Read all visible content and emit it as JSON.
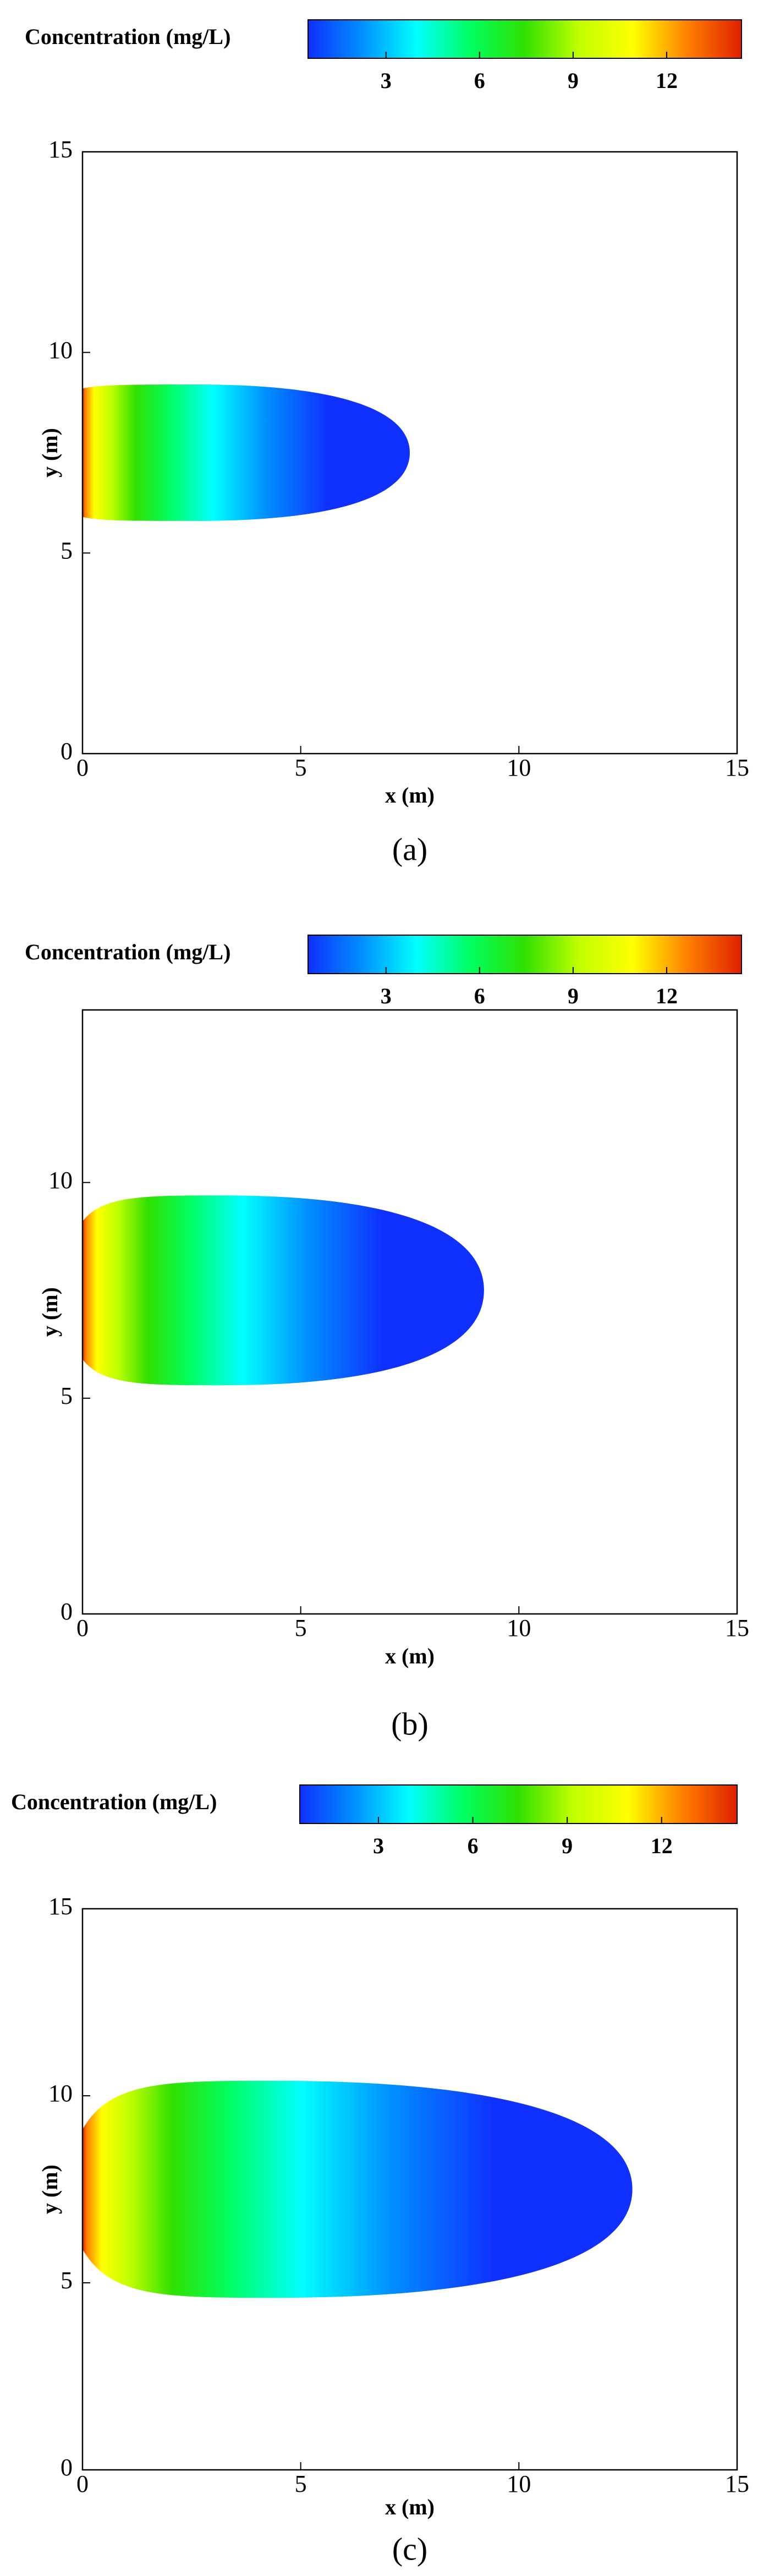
{
  "chart_data": [
    {
      "type": "contour",
      "colorbar_label": "Concentration (mg/L)",
      "clim": [
        0.5,
        14.4
      ],
      "cticks": [
        3,
        6,
        9,
        12
      ],
      "colormap": [
        "#1030ff",
        "#0090ff",
        "#00ffff",
        "#00ff60",
        "#30e000",
        "#c0ff00",
        "#ffff00",
        "#ff8000",
        "#e02000"
      ],
      "xlim": [
        0,
        15
      ],
      "ylim": [
        0,
        15
      ],
      "xticks": [
        0,
        5,
        10,
        15
      ],
      "yticks": [
        0,
        5,
        10,
        15
      ],
      "xlabel": "x (m)",
      "ylabel": "y (m)",
      "caption": "(a)",
      "plume": {
        "x_max": 7.5,
        "y_min": 5.8,
        "y_max": 9.2
      }
    },
    {
      "type": "contour",
      "colorbar_label": "Concentration (mg/L)",
      "clim": [
        0.5,
        14.4
      ],
      "cticks": [
        3,
        6,
        9,
        12
      ],
      "colormap": [
        "#1030ff",
        "#0090ff",
        "#00ffff",
        "#00ff60",
        "#30e000",
        "#c0ff00",
        "#ffff00",
        "#ff8000",
        "#e02000"
      ],
      "xlim": [
        0,
        15
      ],
      "ylim": [
        0,
        14
      ],
      "xticks": [
        0,
        5,
        10,
        15
      ],
      "yticks": [
        0,
        5,
        10
      ],
      "xlabel": "x (m)",
      "ylabel": "y (m)",
      "caption": "(b)",
      "plume": {
        "x_max": 9.2,
        "y_min": 5.3,
        "y_max": 9.7
      }
    },
    {
      "type": "contour",
      "colorbar_label": "Concentration (mg/L)",
      "clim": [
        0.5,
        14.4
      ],
      "cticks": [
        3,
        6,
        9,
        12
      ],
      "colormap": [
        "#1030ff",
        "#0090ff",
        "#00ffff",
        "#00ff60",
        "#30e000",
        "#c0ff00",
        "#ffff00",
        "#ff8000",
        "#e02000"
      ],
      "xlim": [
        0,
        15
      ],
      "ylim": [
        0,
        15
      ],
      "xticks": [
        0,
        5,
        10,
        15
      ],
      "yticks": [
        0,
        5,
        10,
        15
      ],
      "xlabel": "x (m)",
      "ylabel": "y (m)",
      "caption": "(c)",
      "plume": {
        "x_max": 12.6,
        "y_min": 4.6,
        "y_max": 10.4
      }
    }
  ]
}
